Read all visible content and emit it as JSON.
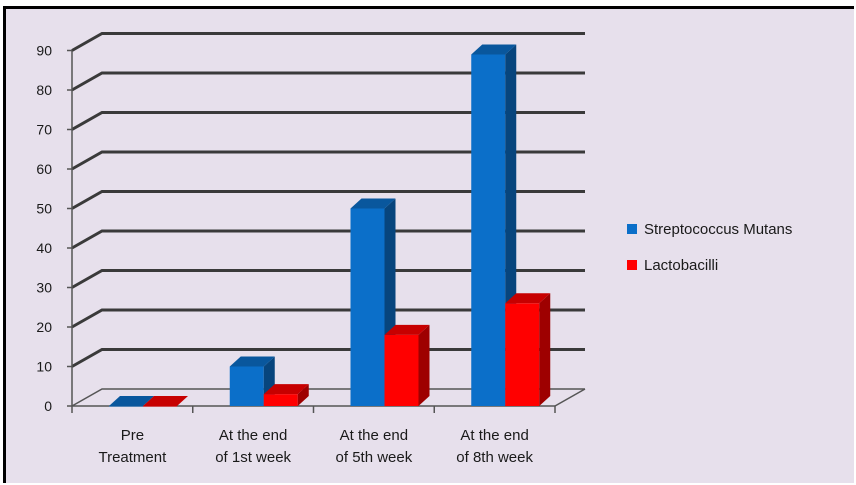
{
  "chart_data": {
    "type": "bar",
    "style": "3d-clustered-column",
    "categories": [
      [
        "Pre",
        "Treatment"
      ],
      [
        "At the end",
        "of 1st week"
      ],
      [
        "At the end",
        "of 5th week"
      ],
      [
        "At the end",
        "of 8th week"
      ]
    ],
    "series": [
      {
        "name": "Streptococcus Mutans",
        "color": "#0b6fc9",
        "values": [
          0,
          10,
          50,
          89
        ]
      },
      {
        "name": "Lactobacilli",
        "color": "#ff0000",
        "values": [
          0,
          3,
          18,
          26
        ]
      }
    ],
    "y_ticks": [
      "0",
      "10",
      "20",
      "30",
      "40",
      "50",
      "60",
      "70",
      "80",
      "90"
    ],
    "ylim": [
      0,
      90
    ],
    "grid": true,
    "legend_position": "right",
    "title": "",
    "xlabel": "",
    "ylabel": ""
  }
}
